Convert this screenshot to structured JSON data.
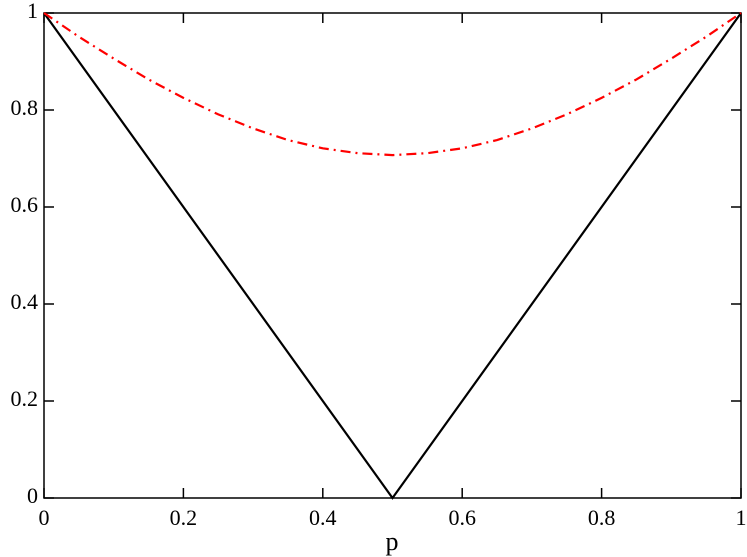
{
  "chart_data": {
    "type": "line",
    "x_label": "p",
    "series": [
      {
        "color": "#000000",
        "style": "solid",
        "x": [
          0,
          0.5,
          1
        ],
        "values": [
          1,
          0,
          1
        ]
      },
      {
        "color": "#ff0000",
        "style": "dashdot",
        "x": [
          0,
          0.05,
          0.1,
          0.15,
          0.2,
          0.25,
          0.3,
          0.35,
          0.4,
          0.45,
          0.5,
          0.55,
          0.6,
          0.65,
          0.7,
          0.75,
          0.8,
          0.85,
          0.9,
          0.95,
          1
        ],
        "values": [
          1,
          0.951,
          0.906,
          0.863,
          0.825,
          0.791,
          0.762,
          0.738,
          0.721,
          0.711,
          0.707,
          0.711,
          0.721,
          0.738,
          0.762,
          0.791,
          0.825,
          0.863,
          0.906,
          0.951,
          1
        ]
      }
    ],
    "xlim": [
      0,
      1
    ],
    "xticks": [
      0,
      0.2,
      0.4,
      0.6,
      0.8,
      1
    ],
    "ylim": [
      0,
      1
    ],
    "yticks": [
      0,
      0.2,
      0.4,
      0.6,
      0.8,
      1
    ]
  }
}
